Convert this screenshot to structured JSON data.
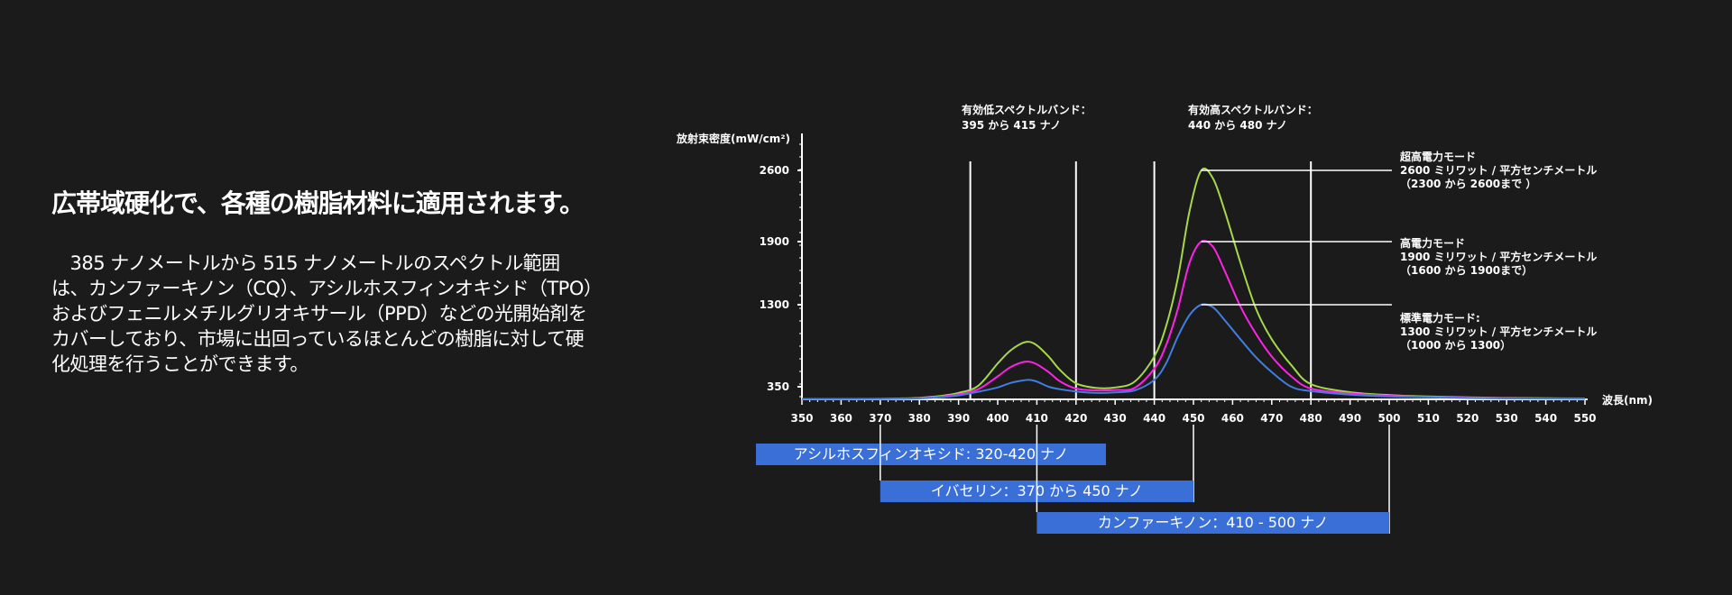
{
  "left": {
    "title": "広帯域硬化で、各種の樹脂材料に適用されます。",
    "body": "　385 ナノメートルから 515 ナノメートルのスペクトル範囲は、カンファーキノン（CQ）、アシルホスフィンオキシド（TPO）およびフェニルメチルグリオキサール（PPD）などの光開始剤をカバーしており、市場に出回っているほとんどの樹脂に対して硬化処理を行うことができます。"
  },
  "chart_data": {
    "type": "line",
    "ylabel": "放射束密度(mW/cm²)",
    "xlabel": "波長(nm)",
    "xlim": [
      350,
      550
    ],
    "ylim": [
      0,
      2800
    ],
    "x_ticks": [
      "350",
      "360",
      "370",
      "380",
      "390",
      "400",
      "410",
      "420",
      "430",
      "440",
      "450",
      "460",
      "470",
      "480",
      "490",
      "500",
      "510",
      "520",
      "530",
      "540",
      "550"
    ],
    "y_ticks": [
      "350",
      "1300",
      "1900",
      "2600"
    ],
    "y_tick_values": [
      350,
      1300,
      1900,
      2600
    ],
    "x": [
      350,
      360,
      370,
      375,
      380,
      385,
      390,
      395,
      400,
      403,
      406,
      408,
      410,
      413,
      416,
      420,
      425,
      430,
      435,
      440,
      443,
      446,
      449,
      452,
      455,
      458,
      462,
      466,
      470,
      475,
      480,
      490,
      500,
      510,
      520,
      530,
      540,
      550
    ],
    "series": [
      {
        "color": "#a6d84a",
        "values": [
          10,
          10,
          15,
          25,
          45,
          90,
          180,
          360,
          620,
          760,
          850,
          870,
          830,
          700,
          540,
          390,
          320,
          330,
          410,
          700,
          1050,
          1550,
          2200,
          2600,
          2520,
          2200,
          1700,
          1250,
          900,
          600,
          380,
          200,
          120,
          80,
          55,
          40,
          30,
          25
        ]
      },
      {
        "color": "#ff22e6",
        "values": [
          10,
          10,
          12,
          20,
          35,
          70,
          140,
          280,
          470,
          570,
          630,
          640,
          610,
          520,
          410,
          300,
          250,
          260,
          320,
          560,
          830,
          1250,
          1700,
          1900,
          1850,
          1620,
          1280,
          960,
          700,
          470,
          300,
          165,
          100,
          65,
          45,
          32,
          25,
          20
        ]
      },
      {
        "color": "#3f7ee0",
        "values": [
          10,
          10,
          10,
          15,
          28,
          55,
          110,
          210,
          330,
          390,
          420,
          430,
          410,
          350,
          280,
          220,
          180,
          195,
          250,
          430,
          620,
          930,
          1180,
          1300,
          1270,
          1120,
          900,
          690,
          520,
          350,
          230,
          130,
          80,
          55,
          38,
          28,
          22,
          18
        ]
      }
    ],
    "vlines": [
      393,
      420,
      440,
      480
    ],
    "band_labels": [
      {
        "title": "有効低スペクトルバンド：",
        "range": "395 から 415 ナノ"
      },
      {
        "title": "有効高スペクトルバンド：",
        "range": "440 から 480 ナノ"
      }
    ],
    "modes": [
      {
        "value": 2600,
        "lines": [
          "超高電力モード",
          " 2600 ミリワット / 平方センチメートル",
          " （2300 から 2600まで ）"
        ]
      },
      {
        "value": 1900,
        "lines": [
          "高電力モード",
          "1900 ミリワット / 平方センチメートル",
          " （1600 から 1900まで）"
        ]
      },
      {
        "value": 1300,
        "lines": [
          "標準電力モード:",
          "1300 ミリワット / 平方センチメートル",
          " （1000 から 1300）"
        ]
      }
    ],
    "range_bars": [
      {
        "label": "アシルホスフィンオキシド: 320-420 ナノ",
        "start": 320,
        "end": 420,
        "color": "#3a6fd8"
      },
      {
        "label": "イバセリン：370 から 450 ナノ",
        "start": 370,
        "end": 450,
        "color": "#3a6fd8"
      },
      {
        "label": "カンファーキノン：410 - 500 ナノ",
        "start": 410,
        "end": 500,
        "color": "#3a6fd8"
      }
    ]
  }
}
